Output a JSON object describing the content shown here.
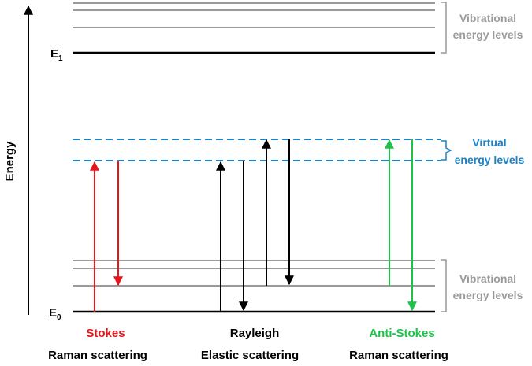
{
  "axis": {
    "label": "Energy"
  },
  "levels": {
    "e1_label_main": "E",
    "e1_label_sub": "1",
    "e0_label_main": "E",
    "e0_label_sub": "0"
  },
  "brackets": {
    "top_vibrational": {
      "line1": "Vibrational",
      "line2": "energy levels"
    },
    "virtual": {
      "line1": "Virtual",
      "line2": "energy levels"
    },
    "bottom_vibrational": {
      "line1": "Vibrational",
      "line2": "energy levels"
    }
  },
  "processes": [
    {
      "name": "Stokes",
      "subtitle": "Raman scattering",
      "color": "#e8141b"
    },
    {
      "name": "Rayleigh",
      "subtitle": "Elastic scattering",
      "color": "#000000"
    },
    {
      "name": "Anti-Stokes",
      "subtitle": "Raman scattering",
      "color": "#1ec24a"
    }
  ],
  "colors": {
    "virtual": "#1f82c4",
    "vibrational": "#9a9a9a",
    "bracket_text": "#9a9a9a"
  }
}
